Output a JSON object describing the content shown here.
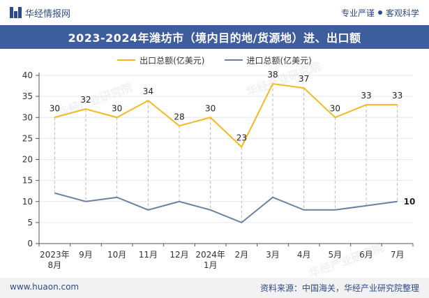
{
  "header": {
    "brand": "华经情报网",
    "tagline_1": "专业严谨",
    "tagline_2": "客观科学"
  },
  "footer": {
    "website": "www.huaon.com",
    "source": "资料来源：中国海关，华经产业研究院整理"
  },
  "colors": {
    "export": "#f5b81f",
    "import": "#6b7fa3",
    "title_bg": "#3d5d9c",
    "brand": "#2d4a8a"
  },
  "chart_data": {
    "type": "line",
    "title": "2023-2024年潍坊市（境内目的地/货源地）进、出口额",
    "categories": [
      "2023年\n8月",
      "9月",
      "10月",
      "11月",
      "12月",
      "2024年\n1月",
      "2月",
      "3月",
      "4月",
      "5月",
      "6月",
      "7月"
    ],
    "ylim": [
      0,
      40
    ],
    "yticks": [
      0,
      5,
      10,
      15,
      20,
      25,
      30,
      35,
      40
    ],
    "grid": true,
    "legend_position": "top-center",
    "series": [
      {
        "name": "出口总额(亿美元)",
        "color": "#f5b81f",
        "values": [
          30,
          32,
          30,
          34,
          28,
          30,
          23,
          38,
          37,
          30,
          33,
          33
        ],
        "labels": [
          "30",
          "32",
          "30",
          "34",
          "28",
          "30",
          "23",
          "38",
          "37",
          "30",
          "33",
          "33"
        ]
      },
      {
        "name": "进口总额(亿美元)",
        "color": "#6b7fa3",
        "values": [
          12,
          10,
          11,
          8,
          10,
          8,
          5,
          11,
          8,
          8,
          9,
          10
        ],
        "labels": [
          "",
          "",
          "",
          "",
          "",
          "",
          "",
          "",
          "",
          "",
          "",
          "10"
        ]
      }
    ]
  }
}
